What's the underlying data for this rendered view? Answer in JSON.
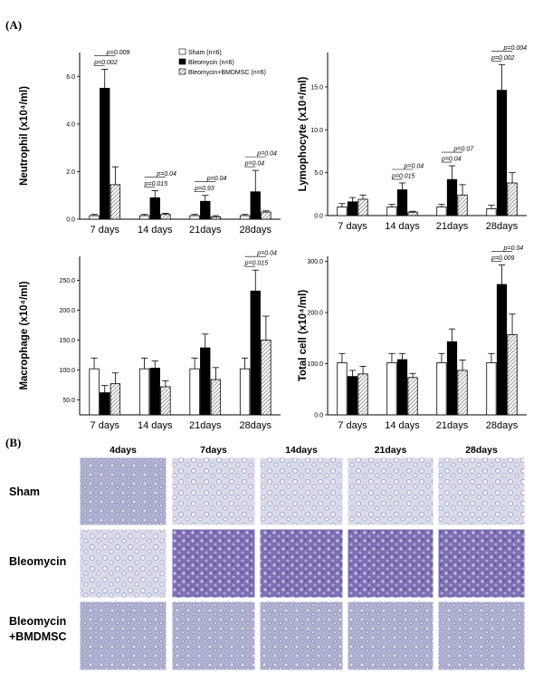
{
  "panel_a_label": "(A)",
  "panel_b_label": "(B)",
  "legend": [
    {
      "label": "Sham (n=6)",
      "fill": "white"
    },
    {
      "label": "Bleomycin (n=6)",
      "fill": "black"
    },
    {
      "label": "Bleomycin+BMDMSC (n=6)",
      "fill": "hatch"
    }
  ],
  "chart_data": [
    {
      "type": "bar",
      "ylabel": "Neutrophil (x10⁴/ml)",
      "categories": [
        "7 days",
        "14 days",
        "21days",
        "28days"
      ],
      "ylim": [
        0,
        7
      ],
      "yticks": [
        "0.0",
        "2.0",
        "4.0",
        "6.0"
      ],
      "series": [
        {
          "name": "Sham (n=6)",
          "values": [
            0.15,
            0.15,
            0.15,
            0.15
          ],
          "errors": [
            0.05,
            0.05,
            0.05,
            0.05
          ]
        },
        {
          "name": "Bleomycin (n=6)",
          "values": [
            5.5,
            0.9,
            0.75,
            1.15
          ],
          "errors": [
            0.8,
            0.3,
            0.25,
            0.9
          ]
        },
        {
          "name": "Bleomycin+BMDMSC (n=6)",
          "values": [
            1.45,
            0.2,
            0.1,
            0.3
          ],
          "errors": [
            0.75,
            0.05,
            0.05,
            0.05
          ]
        }
      ],
      "annotations": [
        {
          "category": 0,
          "level": 1,
          "text": "p=0.002"
        },
        {
          "category": 0,
          "level": 2,
          "text": "p=0.009"
        },
        {
          "category": 1,
          "level": 1,
          "text": "p=0.015"
        },
        {
          "category": 1,
          "level": 2,
          "text": "p=0.04"
        },
        {
          "category": 2,
          "level": 1,
          "text": "p=0.93"
        },
        {
          "category": 2,
          "level": 2,
          "text": "p=0.04"
        },
        {
          "category": 3,
          "level": 1,
          "text": "p=0.04"
        },
        {
          "category": 3,
          "level": 2,
          "text": "p=0.04"
        }
      ]
    },
    {
      "type": "bar",
      "ylabel": "Lymophocyte (x10⁴/ml)",
      "categories": [
        "7 days",
        "14 days",
        "21days",
        "28days"
      ],
      "ylim": [
        0,
        19
      ],
      "yticks": [
        "0.0",
        "5.0",
        "10.0",
        "15.0"
      ],
      "series": [
        {
          "name": "Sham (n=6)",
          "values": [
            1.0,
            1.0,
            1.0,
            0.8
          ],
          "errors": [
            0.4,
            0.3,
            0.3,
            0.4
          ]
        },
        {
          "name": "Bleomycin (n=6)",
          "values": [
            1.6,
            3.0,
            4.2,
            14.6
          ],
          "errors": [
            0.5,
            0.8,
            1.6,
            3.0
          ]
        },
        {
          "name": "Bleomycin+BMDMSC (n=6)",
          "values": [
            1.9,
            0.4,
            2.4,
            3.8
          ],
          "errors": [
            0.5,
            0.1,
            1.2,
            1.2
          ]
        }
      ],
      "annotations": [
        {
          "category": 1,
          "level": 1,
          "text": "p=0.015"
        },
        {
          "category": 1,
          "level": 2,
          "text": "p=0.04"
        },
        {
          "category": 2,
          "level": 1,
          "text": "p=0.04"
        },
        {
          "category": 2,
          "level": 2,
          "text": "p=0.07"
        },
        {
          "category": 3,
          "level": 1,
          "text": "p=0.002"
        },
        {
          "category": 3,
          "level": 2,
          "text": "p=0.004"
        }
      ]
    },
    {
      "type": "bar",
      "ylabel": "Macrophage (x10⁴/ml)",
      "categories": [
        "7 days",
        "14 days",
        "21days",
        "28days"
      ],
      "ylim": [
        25,
        290
      ],
      "ystart": 25,
      "yticks": [
        "50.0",
        "100.0",
        "150.0",
        "200.0",
        "250.0"
      ],
      "yticks_at": [
        50,
        100,
        150,
        200,
        250
      ],
      "series": [
        {
          "name": "Sham (n=6)",
          "values": [
            102,
            102,
            102,
            102
          ],
          "errors": [
            18,
            18,
            18,
            18
          ]
        },
        {
          "name": "Bleomycin (n=6)",
          "values": [
            62,
            103,
            137,
            232
          ],
          "errors": [
            12,
            12,
            23,
            35
          ]
        },
        {
          "name": "Bleomycin+BMDMSC (n=6)",
          "values": [
            77,
            72,
            84,
            150
          ],
          "errors": [
            18,
            10,
            20,
            40
          ]
        }
      ],
      "annotations": [
        {
          "category": 3,
          "level": 1,
          "text": "p=0.015"
        },
        {
          "category": 3,
          "level": 2,
          "text": "p=0.04"
        }
      ]
    },
    {
      "type": "bar",
      "ylabel": "Total cell (x10⁴/ml)",
      "categories": [
        "7 days",
        "14 days",
        "21days",
        "28days"
      ],
      "ylim": [
        0,
        310
      ],
      "yticks": [
        "0.0",
        "100.0",
        "200.0",
        "300.0"
      ],
      "yticks_at": [
        0,
        100,
        200,
        300
      ],
      "series": [
        {
          "name": "Sham (n=6)",
          "values": [
            102,
            102,
            102,
            102
          ],
          "errors": [
            18,
            18,
            18,
            18
          ]
        },
        {
          "name": "Bleomycin (n=6)",
          "values": [
            75,
            108,
            143,
            255
          ],
          "errors": [
            12,
            12,
            25,
            38
          ]
        },
        {
          "name": "Bleomycin+BMDMSC (n=6)",
          "values": [
            80,
            73,
            87,
            157
          ],
          "errors": [
            15,
            8,
            20,
            40
          ]
        }
      ],
      "annotations": [
        {
          "category": 3,
          "level": 1,
          "text": "p=0.009"
        },
        {
          "category": 3,
          "level": 2,
          "text": "p=0.04"
        }
      ]
    }
  ],
  "histology": {
    "columns": [
      "4days",
      "7days",
      "14days",
      "21days",
      "28days"
    ],
    "rows": [
      {
        "label_lines": [
          "Sham"
        ]
      },
      {
        "label_lines": [
          "Bleomycin"
        ]
      },
      {
        "label_lines": [
          "Bleomycin",
          "+BMDMSC"
        ]
      }
    ]
  }
}
